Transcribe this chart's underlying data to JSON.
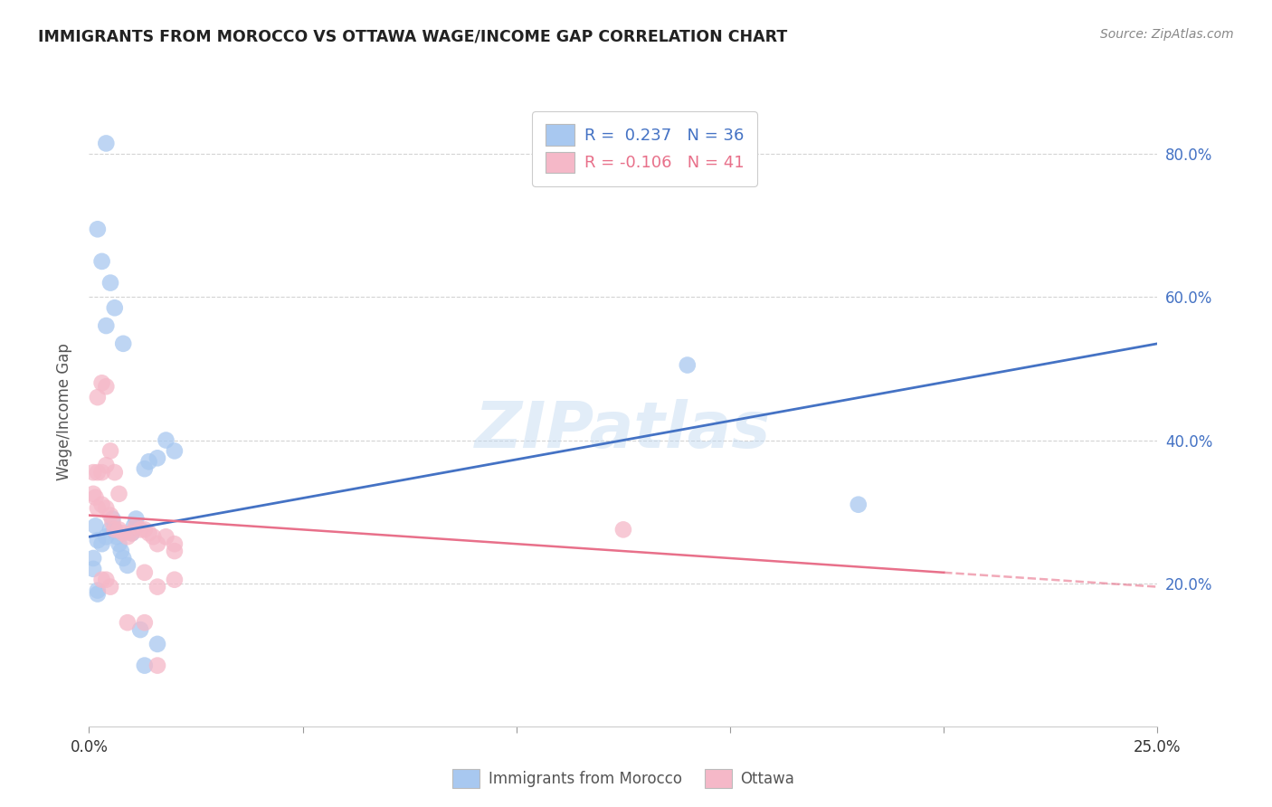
{
  "title": "IMMIGRANTS FROM MOROCCO VS OTTAWA WAGE/INCOME GAP CORRELATION CHART",
  "source": "Source: ZipAtlas.com",
  "ylabel": "Wage/Income Gap",
  "yticks": [
    0.2,
    0.4,
    0.6,
    0.8
  ],
  "ytick_labels": [
    "20.0%",
    "40.0%",
    "60.0%",
    "80.0%"
  ],
  "xrange": [
    0.0,
    0.25
  ],
  "yrange": [
    0.0,
    0.88
  ],
  "legend_entries": [
    {
      "label_r": "R =  0.237",
      "label_n": "N = 36"
    },
    {
      "label_r": "R = -0.106",
      "label_n": "N = 41"
    }
  ],
  "series1_label": "Immigrants from Morocco",
  "series2_label": "Ottawa",
  "series1_color": "#a8c8f0",
  "series2_color": "#f5b8c8",
  "series1_line_color": "#4472C4",
  "series2_line_color": "#E8708A",
  "watermark": "ZIPatlas",
  "blue_dots": [
    [
      0.0015,
      0.28
    ],
    [
      0.002,
      0.26
    ],
    [
      0.003,
      0.255
    ],
    [
      0.004,
      0.265
    ],
    [
      0.005,
      0.275
    ],
    [
      0.0055,
      0.29
    ],
    [
      0.006,
      0.275
    ],
    [
      0.0065,
      0.265
    ],
    [
      0.007,
      0.255
    ],
    [
      0.0075,
      0.245
    ],
    [
      0.008,
      0.235
    ],
    [
      0.009,
      0.225
    ],
    [
      0.01,
      0.27
    ],
    [
      0.0105,
      0.28
    ],
    [
      0.011,
      0.29
    ],
    [
      0.013,
      0.36
    ],
    [
      0.014,
      0.37
    ],
    [
      0.016,
      0.375
    ],
    [
      0.018,
      0.4
    ],
    [
      0.02,
      0.385
    ],
    [
      0.004,
      0.56
    ],
    [
      0.005,
      0.62
    ],
    [
      0.006,
      0.585
    ],
    [
      0.008,
      0.535
    ],
    [
      0.002,
      0.695
    ],
    [
      0.003,
      0.65
    ],
    [
      0.004,
      0.815
    ],
    [
      0.14,
      0.505
    ],
    [
      0.18,
      0.31
    ],
    [
      0.002,
      0.185
    ],
    [
      0.012,
      0.135
    ],
    [
      0.016,
      0.115
    ],
    [
      0.013,
      0.085
    ],
    [
      0.001,
      0.235
    ],
    [
      0.001,
      0.22
    ],
    [
      0.002,
      0.19
    ]
  ],
  "pink_dots": [
    [
      0.001,
      0.325
    ],
    [
      0.0015,
      0.32
    ],
    [
      0.002,
      0.305
    ],
    [
      0.003,
      0.31
    ],
    [
      0.004,
      0.305
    ],
    [
      0.005,
      0.295
    ],
    [
      0.0055,
      0.285
    ],
    [
      0.006,
      0.275
    ],
    [
      0.007,
      0.275
    ],
    [
      0.008,
      0.27
    ],
    [
      0.009,
      0.265
    ],
    [
      0.01,
      0.27
    ],
    [
      0.011,
      0.28
    ],
    [
      0.012,
      0.275
    ],
    [
      0.013,
      0.275
    ],
    [
      0.014,
      0.27
    ],
    [
      0.015,
      0.265
    ],
    [
      0.016,
      0.255
    ],
    [
      0.018,
      0.265
    ],
    [
      0.02,
      0.245
    ],
    [
      0.002,
      0.46
    ],
    [
      0.003,
      0.48
    ],
    [
      0.004,
      0.475
    ],
    [
      0.001,
      0.355
    ],
    [
      0.002,
      0.355
    ],
    [
      0.003,
      0.355
    ],
    [
      0.004,
      0.365
    ],
    [
      0.005,
      0.385
    ],
    [
      0.006,
      0.355
    ],
    [
      0.007,
      0.325
    ],
    [
      0.125,
      0.275
    ],
    [
      0.003,
      0.205
    ],
    [
      0.004,
      0.205
    ],
    [
      0.005,
      0.195
    ],
    [
      0.013,
      0.215
    ],
    [
      0.016,
      0.195
    ],
    [
      0.02,
      0.205
    ],
    [
      0.009,
      0.145
    ],
    [
      0.013,
      0.145
    ],
    [
      0.016,
      0.085
    ],
    [
      0.02,
      0.255
    ]
  ],
  "blue_line": {
    "x0": 0.0,
    "y0": 0.265,
    "x1": 0.25,
    "y1": 0.535
  },
  "pink_line_solid": {
    "x0": 0.0,
    "y0": 0.295,
    "x1": 0.2,
    "y1": 0.215
  },
  "pink_line_dash": {
    "x0": 0.2,
    "y0": 0.215,
    "x1": 0.25,
    "y1": 0.195
  }
}
